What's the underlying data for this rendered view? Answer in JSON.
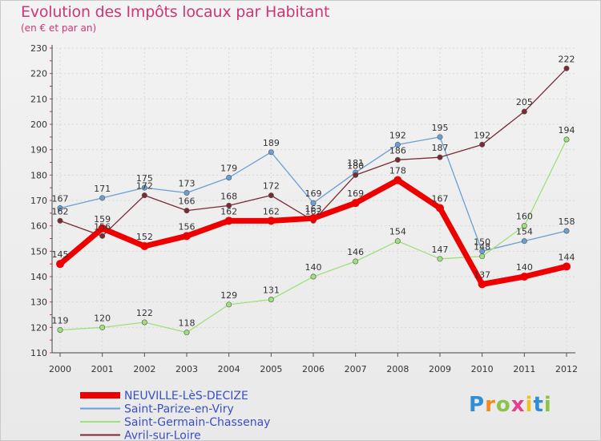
{
  "chart_data": {
    "type": "line",
    "title": "Evolution des Impôts locaux par Habitant",
    "subtitle": "(en € et par an)",
    "xlabel": "",
    "ylabel": "",
    "ylim": [
      110,
      230
    ],
    "y_ticks": [
      110,
      120,
      130,
      140,
      150,
      160,
      170,
      180,
      190,
      200,
      210,
      220,
      230
    ],
    "x": [
      "2000",
      "2001",
      "2002",
      "2003",
      "2004",
      "2005",
      "2006",
      "2007",
      "2008",
      "2009",
      "2010",
      "2011",
      "2012"
    ],
    "grid": true,
    "legend_position": "bottom-left",
    "series": [
      {
        "name": "NEUVILLE-LèS-DECIZE",
        "color": "#ee0000",
        "emphasis": true,
        "values": [
          145,
          159,
          152,
          156,
          162,
          162,
          163,
          169,
          178,
          167,
          137,
          140,
          144
        ]
      },
      {
        "name": "Saint-Parize-en-Viry",
        "color": "#6a9fd4",
        "emphasis": false,
        "values": [
          167,
          171,
          175,
          173,
          179,
          189,
          169,
          181,
          192,
          195,
          150,
          154,
          158
        ]
      },
      {
        "name": "Saint-Germain-Chassenay",
        "color": "#9ee07a",
        "emphasis": false,
        "values": [
          119,
          120,
          122,
          118,
          129,
          131,
          140,
          146,
          154,
          147,
          148,
          160,
          194
        ]
      },
      {
        "name": "Avril-sur-Loire",
        "color": "#7a2a33",
        "emphasis": false,
        "values": [
          162,
          156,
          172,
          166,
          168,
          172,
          162,
          180,
          186,
          187,
          192,
          205,
          222
        ]
      }
    ]
  },
  "branding": {
    "logo_letters": [
      "P",
      "r",
      "o",
      "x",
      "i",
      "t",
      "i"
    ]
  }
}
